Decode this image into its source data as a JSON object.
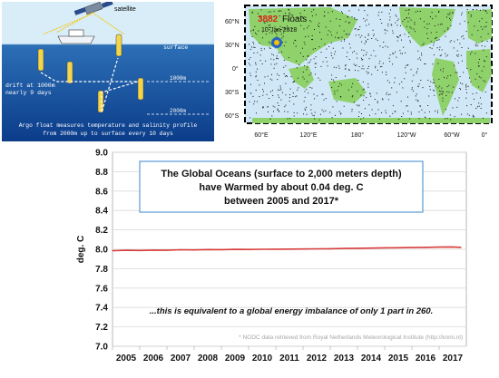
{
  "argo": {
    "satellite": "satellite",
    "surface": "surface",
    "depth_1000": "1000m",
    "depth_2000": "2000m",
    "drift_line1": "drift at 1000m",
    "drift_line2": "nearly 9 days",
    "caption_line1": "Argo float measures temperature and salinity profile",
    "caption_line2": "from 2000m up to surface every 10 days"
  },
  "map": {
    "float_count": "3882",
    "floats_word": "Floats",
    "date": "10-Jan-2018",
    "lat_labels": [
      "60°N",
      "30°N",
      "0°",
      "30°S",
      "60°S"
    ],
    "lon_labels": [
      "60°E",
      "120°E",
      "180°",
      "120°W",
      "60°W",
      "0°"
    ]
  },
  "chart_data": {
    "type": "line",
    "title_lines": [
      "The Global Oceans (surface to 2,000 meters depth)",
      "have Warmed by about 0.04 deg. C",
      "between 2005 and 2017*"
    ],
    "ylabel": "deg. C",
    "ylim": [
      7.0,
      9.0
    ],
    "yticks": [
      "7.0",
      "7.2",
      "7.4",
      "7.6",
      "7.8",
      "8.0",
      "8.2",
      "8.4",
      "8.6",
      "8.8",
      "9.0"
    ],
    "xticks": [
      "2005",
      "2006",
      "2007",
      "2008",
      "2009",
      "2010",
      "2011",
      "2012",
      "2013",
      "2014",
      "2015",
      "2016",
      "2017"
    ],
    "annotation": "...this is equivalent to a global energy imbalance of only 1 part in 260.",
    "footnote": "* NODC data retrieved from Royal Netherlands Meteorological Institute (http://knmi.nl)",
    "series_color": "#d83c3c",
    "series": [
      {
        "x": [
          2005.0,
          2005.5,
          2006.0,
          2006.5,
          2007.0,
          2007.5,
          2008.0,
          2008.5,
          2009.0,
          2009.5,
          2010.0,
          2010.5,
          2011.0,
          2011.5,
          2012.0,
          2012.5,
          2013.0,
          2013.5,
          2014.0,
          2014.5,
          2015.0,
          2015.5,
          2016.0,
          2016.5,
          2017.0,
          2017.5,
          2017.8
        ],
        "values": [
          7.985,
          7.99,
          7.988,
          7.992,
          7.99,
          7.995,
          7.993,
          7.997,
          7.996,
          7.999,
          7.998,
          8.0,
          8.001,
          8.002,
          8.003,
          8.005,
          8.006,
          8.008,
          8.01,
          8.012,
          8.015,
          8.016,
          8.018,
          8.02,
          8.022,
          8.024,
          8.02
        ]
      }
    ]
  }
}
